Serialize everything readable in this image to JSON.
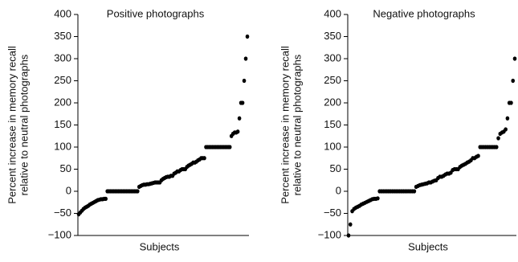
{
  "chart_data": [
    {
      "type": "scatter",
      "title": "Positive photographs",
      "xlabel": "Subjects",
      "ylabel": [
        "Percent increase in memory recall",
        "relative to neutral photographs"
      ],
      "color": "#000000",
      "ylim": [
        -100,
        400
      ],
      "yticks": [
        {
          "value": -100,
          "label": "−100"
        },
        {
          "value": -50,
          "label": "−50"
        },
        0,
        50,
        100,
        150,
        200,
        250,
        300,
        350,
        400
      ],
      "values": [
        -52,
        -48,
        -44,
        -40,
        -37,
        -35,
        -33,
        -30,
        -28,
        -26,
        -24,
        -22,
        -20,
        -19,
        -18,
        -18,
        -17,
        -17,
        0,
        0,
        0,
        0,
        0,
        0,
        0,
        0,
        0,
        0,
        0,
        0,
        0,
        0,
        0,
        0,
        0,
        0,
        0,
        0,
        10,
        12,
        14,
        15,
        15,
        16,
        16,
        17,
        18,
        19,
        20,
        20,
        20,
        20,
        25,
        28,
        30,
        32,
        33,
        33,
        35,
        35,
        40,
        42,
        45,
        45,
        48,
        50,
        50,
        50,
        55,
        58,
        60,
        62,
        65,
        65,
        67,
        70,
        72,
        75,
        75,
        75,
        100,
        100,
        100,
        100,
        100,
        100,
        100,
        100,
        100,
        100,
        100,
        100,
        100,
        100,
        100,
        100,
        125,
        130,
        133,
        133,
        135,
        165,
        200,
        200,
        250,
        300,
        350
      ]
    },
    {
      "type": "scatter",
      "title": "Negative photographs",
      "xlabel": "Subjects",
      "ylabel": [
        "Percent increase in memory recall",
        "relative to neutral photographs"
      ],
      "color": "#000000",
      "ylim": [
        -100,
        400
      ],
      "yticks": [
        {
          "value": -100,
          "label": "−100"
        },
        {
          "value": -50,
          "label": "−50"
        },
        0,
        50,
        100,
        150,
        200,
        250,
        300,
        350,
        400
      ],
      "values": [
        -100,
        -75,
        -45,
        -40,
        -37,
        -35,
        -33,
        -30,
        -28,
        -26,
        -24,
        -22,
        -20,
        -18,
        -17,
        -17,
        -16,
        0,
        0,
        0,
        0,
        0,
        0,
        0,
        0,
        0,
        0,
        0,
        0,
        0,
        0,
        0,
        0,
        0,
        0,
        0,
        0,
        10,
        12,
        14,
        15,
        16,
        17,
        18,
        20,
        20,
        22,
        24,
        25,
        30,
        33,
        33,
        35,
        38,
        40,
        40,
        42,
        48,
        50,
        50,
        50,
        55,
        58,
        60,
        62,
        65,
        67,
        70,
        75,
        75,
        78,
        80,
        100,
        100,
        100,
        100,
        100,
        100,
        100,
        100,
        100,
        100,
        120,
        130,
        133,
        135,
        140,
        165,
        200,
        200,
        250,
        300
      ]
    }
  ]
}
